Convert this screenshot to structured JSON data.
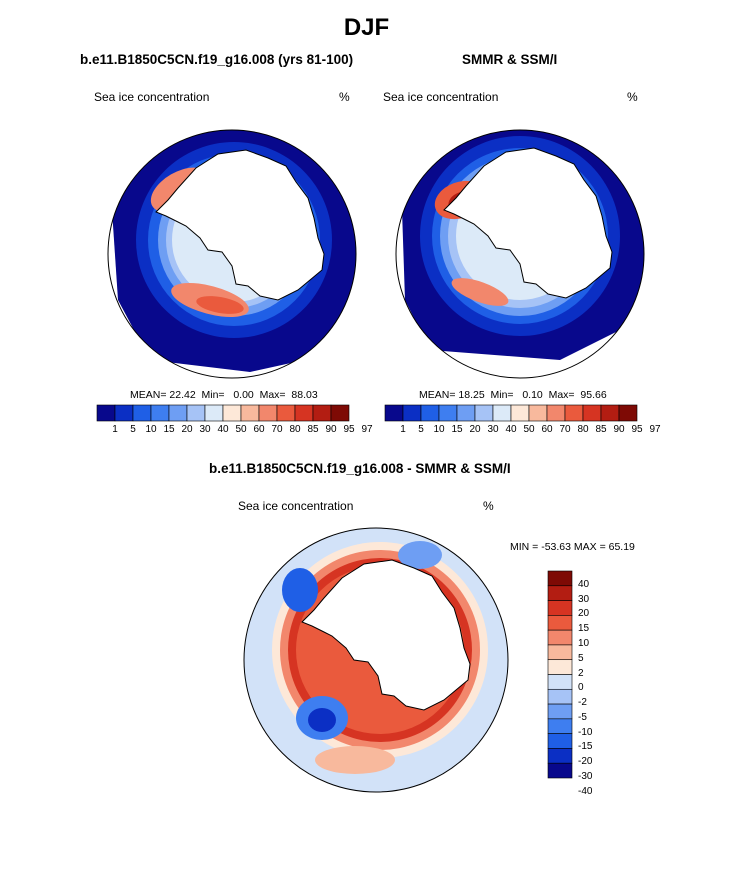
{
  "page": {
    "title": "DJF"
  },
  "colors": {
    "levels12": [
      "#08088c",
      "#0b2fc4",
      "#1f5fe6",
      "#3e7ef0",
      "#6e9ef3",
      "#a6c3f6",
      "#dceaf8",
      "#fde8d8",
      "#f8b99d",
      "#f2876c",
      "#ea5a3d",
      "#d63422",
      "#b31d12",
      "#7e0a05"
    ],
    "diff": [
      "#08088c",
      "#0b2fc4",
      "#1f5fe6",
      "#3e7ef0",
      "#6e9ef3",
      "#a6c3f6",
      "#d2e2f8",
      "#fde8d8",
      "#f8b99d",
      "#f2876c",
      "#ea5a3d",
      "#d63422",
      "#b31d12",
      "#7e0a05"
    ]
  },
  "chart_data": [
    {
      "type": "heatmap",
      "title": "b.e11.B1850C5CN.f19_g16.008 (yrs 81-100)",
      "left_label": "Sea ice concentration",
      "right_label": "%",
      "stats": {
        "mean": "22.42",
        "min": "0.00",
        "max": "88.03"
      },
      "colorbar_ticks": [
        "1",
        "5",
        "10",
        "15",
        "20",
        "30",
        "40",
        "50",
        "60",
        "70",
        "80",
        "85",
        "90",
        "95",
        "97"
      ]
    },
    {
      "type": "heatmap",
      "title": "SMMR & SSM/I",
      "left_label": "Sea ice concentration",
      "right_label": "%",
      "stats": {
        "mean": "18.25",
        "min": "0.10",
        "max": "95.66"
      },
      "colorbar_ticks": [
        "1",
        "5",
        "10",
        "15",
        "20",
        "30",
        "40",
        "50",
        "60",
        "70",
        "80",
        "85",
        "90",
        "95",
        "97"
      ]
    },
    {
      "type": "heatmap",
      "title": "b.e11.B1850C5CN.f19_g16.008 - SMMR & SSM/I",
      "left_label": "Sea ice concentration",
      "right_label": "%",
      "minmax": "MIN = -53.63 MAX =  65.19",
      "colorbar_ticks": [
        "40",
        "30",
        "20",
        "15",
        "10",
        "5",
        "2",
        "0",
        "-2",
        "-5",
        "-10",
        "-15",
        "-20",
        "-30",
        "-40"
      ]
    }
  ]
}
